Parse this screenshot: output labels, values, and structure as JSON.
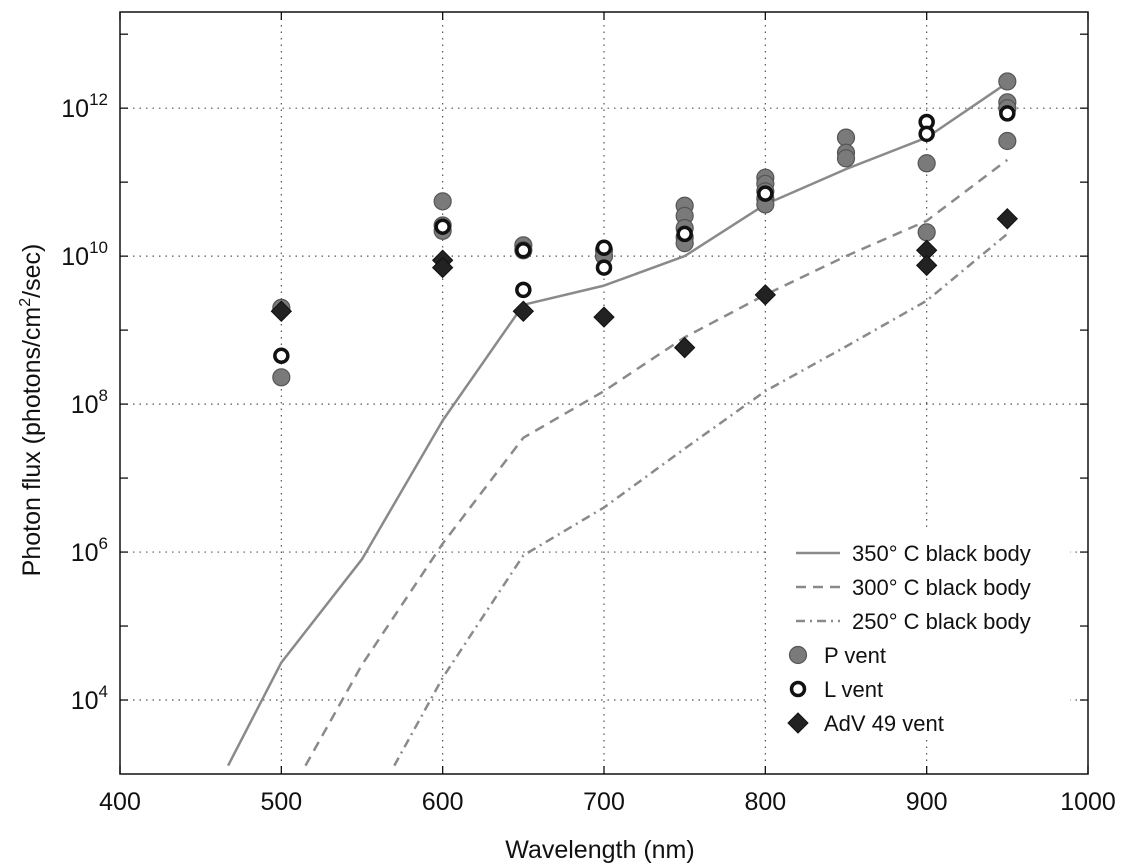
{
  "chart_data": {
    "type": "scatter",
    "title": "",
    "xlabel": "Wavelength (nm)",
    "ylabel": {
      "main": "Photon flux (photons/cm",
      "superscript": "2",
      "rest": "/sec)"
    },
    "xlim": [
      400,
      1000
    ],
    "ylim_log10": [
      3,
      13.3
    ],
    "y_scale": "log",
    "grid": true,
    "grid_style": "dotted",
    "legend_placement": "bottom-right",
    "x_ticks": [
      {
        "value": 400,
        "label": "400"
      },
      {
        "value": 500,
        "label": "500"
      },
      {
        "value": 600,
        "label": "600"
      },
      {
        "value": 700,
        "label": "700"
      },
      {
        "value": 800,
        "label": "800"
      },
      {
        "value": 900,
        "label": "900"
      },
      {
        "value": 1000,
        "label": "1000"
      }
    ],
    "y_ticks": [
      {
        "exp": 4,
        "base": "10",
        "sup": "4"
      },
      {
        "exp": 6,
        "base": "10",
        "sup": "6"
      },
      {
        "exp": 8,
        "base": "10",
        "sup": "8"
      },
      {
        "exp": 10,
        "base": "10",
        "sup": "10"
      },
      {
        "exp": 12,
        "base": "10",
        "sup": "12"
      }
    ],
    "y_grid_exp": [
      4,
      6,
      8,
      10,
      12
    ],
    "series": [
      {
        "name": "350° C black body",
        "kind": "line",
        "style": "solid",
        "color": "#8a8a8a",
        "points": [
          [
            467,
            1300.0
          ],
          [
            500,
            32000.0
          ],
          [
            550,
            800000.0
          ],
          [
            600,
            60000000.0
          ],
          [
            650,
            2200000000.0
          ],
          [
            700,
            4000000000.0
          ],
          [
            750,
            10000000000.0
          ],
          [
            800,
            50000000000.0
          ],
          [
            850,
            150000000000.0
          ],
          [
            900,
            400000000000.0
          ],
          [
            950,
            2200000000000.0
          ]
        ]
      },
      {
        "name": "300° C black body",
        "kind": "line",
        "style": "dashed",
        "color": "#8a8a8a",
        "points": [
          [
            515,
            1300.0
          ],
          [
            550,
            30000.0
          ],
          [
            600,
            1300000.0
          ],
          [
            650,
            35000000.0
          ],
          [
            700,
            150000000.0
          ],
          [
            750,
            800000000.0
          ],
          [
            800,
            3000000000.0
          ],
          [
            850,
            10000000000.0
          ],
          [
            900,
            30000000000.0
          ],
          [
            950,
            200000000000.0
          ]
        ]
      },
      {
        "name": "250° C black body",
        "kind": "line",
        "style": "dashdot",
        "color": "#8a8a8a",
        "points": [
          [
            570,
            1300.0
          ],
          [
            600,
            20000.0
          ],
          [
            650,
            900000.0
          ],
          [
            700,
            4000000.0
          ],
          [
            750,
            25000000.0
          ],
          [
            800,
            150000000.0
          ],
          [
            850,
            600000000.0
          ],
          [
            900,
            2500000000.0
          ],
          [
            950,
            20000000000.0
          ]
        ]
      },
      {
        "name": "P vent",
        "kind": "scatter",
        "marker": "filled-circle",
        "color": "#7a7a7a",
        "points": [
          [
            500,
            230000000.0
          ],
          [
            500,
            2000000000.0
          ],
          [
            600,
            55000000000.0
          ],
          [
            600,
            26000000000.0
          ],
          [
            600,
            22000000000.0
          ],
          [
            650,
            14000000000.0
          ],
          [
            650,
            12000000000.0
          ],
          [
            700,
            12000000000.0
          ],
          [
            700,
            10000000000.0
          ],
          [
            750,
            48000000000.0
          ],
          [
            750,
            35000000000.0
          ],
          [
            750,
            24000000000.0
          ],
          [
            750,
            18000000000.0
          ],
          [
            750,
            15000000000.0
          ],
          [
            800,
            115000000000.0
          ],
          [
            800,
            95000000000.0
          ],
          [
            800,
            75000000000.0
          ],
          [
            800,
            60000000000.0
          ],
          [
            800,
            50000000000.0
          ],
          [
            850,
            400000000000.0
          ],
          [
            850,
            250000000000.0
          ],
          [
            850,
            210000000000.0
          ],
          [
            900,
            180000000000.0
          ],
          [
            900,
            21000000000.0
          ],
          [
            950,
            2300000000000.0
          ],
          [
            950,
            1200000000000.0
          ],
          [
            950,
            1000000000000.0
          ],
          [
            950,
            360000000000.0
          ]
        ]
      },
      {
        "name": "L vent",
        "kind": "scatter",
        "marker": "open-circle",
        "color": "#111111",
        "points": [
          [
            500,
            450000000.0
          ],
          [
            600,
            25000000000.0
          ],
          [
            650,
            12000000000.0
          ],
          [
            650,
            3500000000.0
          ],
          [
            700,
            13000000000.0
          ],
          [
            700,
            7000000000.0
          ],
          [
            750,
            20000000000.0
          ],
          [
            800,
            70000000000.0
          ],
          [
            900,
            650000000000.0
          ],
          [
            900,
            450000000000.0
          ],
          [
            950,
            850000000000.0
          ]
        ]
      },
      {
        "name": "AdV 49 vent",
        "kind": "scatter",
        "marker": "filled-diamond",
        "color": "#222222",
        "points": [
          [
            500,
            1800000000.0
          ],
          [
            600,
            8800000000.0
          ],
          [
            600,
            7000000000.0
          ],
          [
            650,
            1800000000.0
          ],
          [
            700,
            1500000000.0
          ],
          [
            750,
            580000000.0
          ],
          [
            800,
            3000000000.0
          ],
          [
            900,
            12000000000.0
          ],
          [
            900,
            7500000000.0
          ],
          [
            950,
            32000000000.0
          ]
        ]
      }
    ]
  }
}
